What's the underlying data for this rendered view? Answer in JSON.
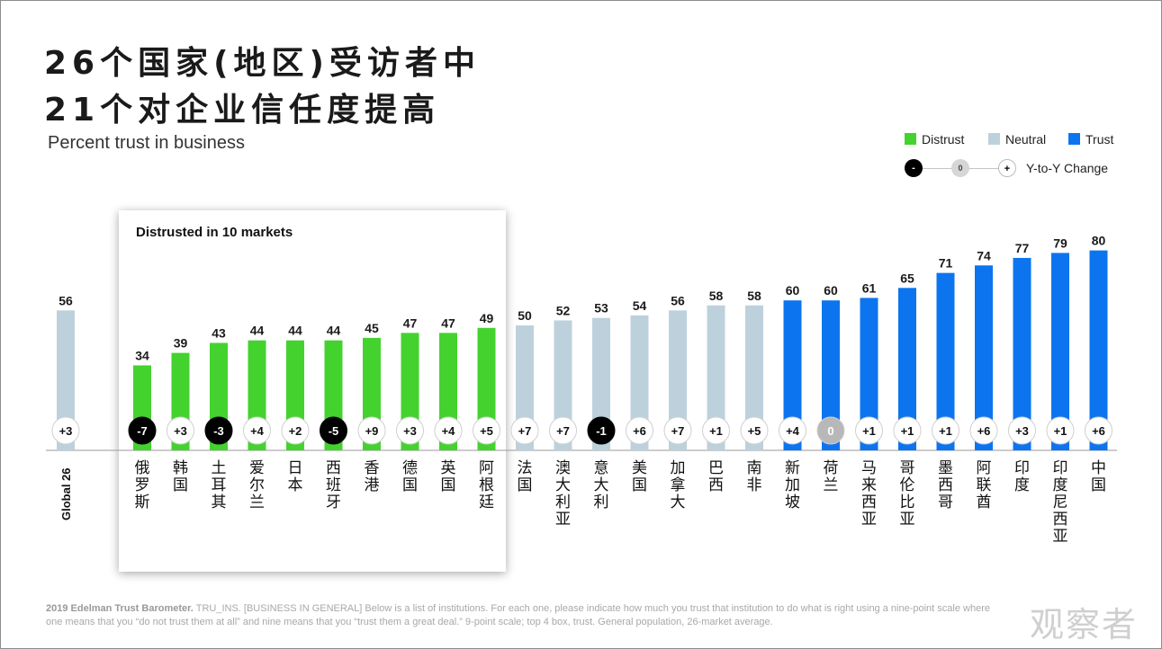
{
  "title_line1": "26个国家(地区)受访者中",
  "title_line2": "21个对企业信任度提高",
  "subtitle": "Percent trust in business",
  "legend": {
    "distrust": "Distrust",
    "neutral": "Neutral",
    "trust": "Trust",
    "change_minus": "-",
    "change_zero": "0",
    "change_plus": "+",
    "change_label": "Y-to-Y Change"
  },
  "colors": {
    "distrust": "#44d22f",
    "neutral": "#bdd1dc",
    "trust": "#0d74f0",
    "change_negative": "#000000",
    "change_zero": "#b8b8b8"
  },
  "distrust_box_title": "Distrusted in 10 markets",
  "footnote": {
    "lead": "2019 Edelman Trust Barometer.",
    "text": "TRU_INS. [BUSINESS IN GENERAL] Below is a list of institutions. For each one, please indicate how much you trust that institution to do what is right using a nine-point scale where one means that you “do not trust them at all” and nine means that you “trust them a great deal.” 9-point scale; top 4 box, trust. General population, 26-market average."
  },
  "watermark": "观察者",
  "chart_data": {
    "type": "bar",
    "ylim": [
      0,
      100
    ],
    "categories": [
      "Global 26",
      "俄罗斯",
      "韩国",
      "土耳其",
      "爱尔兰",
      "日本",
      "西班牙",
      "香港",
      "德国",
      "英国",
      "阿根廷",
      "法国",
      "澳大利亚",
      "意大利",
      "美国",
      "加拿大",
      "巴西",
      "南非",
      "新加坡",
      "荷兰",
      "马来西亚",
      "哥伦比亚",
      "墨西哥",
      "阿联酋",
      "印度",
      "印度尼西亚",
      "中国"
    ],
    "values": [
      56,
      34,
      39,
      43,
      44,
      44,
      44,
      45,
      47,
      47,
      49,
      50,
      52,
      53,
      54,
      56,
      58,
      58,
      60,
      60,
      61,
      65,
      71,
      74,
      77,
      79,
      80
    ],
    "labels": [
      "56",
      "34",
      "39",
      "43",
      "44",
      "44",
      "44",
      "45",
      "47",
      "47",
      "49",
      "50",
      "52",
      "53",
      "54",
      "56",
      "58",
      "58",
      "60",
      "60",
      "61",
      "65",
      "71",
      "74",
      "77",
      "79",
      "80"
    ],
    "status": [
      "neutral",
      "distrust",
      "distrust",
      "distrust",
      "distrust",
      "distrust",
      "distrust",
      "distrust",
      "distrust",
      "distrust",
      "distrust",
      "neutral",
      "neutral",
      "neutral",
      "neutral",
      "neutral",
      "neutral",
      "neutral",
      "trust",
      "trust",
      "trust",
      "trust",
      "trust",
      "trust",
      "trust",
      "trust",
      "trust"
    ],
    "yoy_change": [
      "+3",
      "-7",
      "+3",
      "-3",
      "+4",
      "+2",
      "-5",
      "+9",
      "+3",
      "+4",
      "+5",
      "+7",
      "+7",
      "-1",
      "+6",
      "+7",
      "+1",
      "+5",
      "+4",
      "0",
      "+1",
      "+1",
      "+1",
      "+6",
      "+3",
      "+1",
      "+6"
    ],
    "grid": false,
    "legend_position": "top-right"
  }
}
